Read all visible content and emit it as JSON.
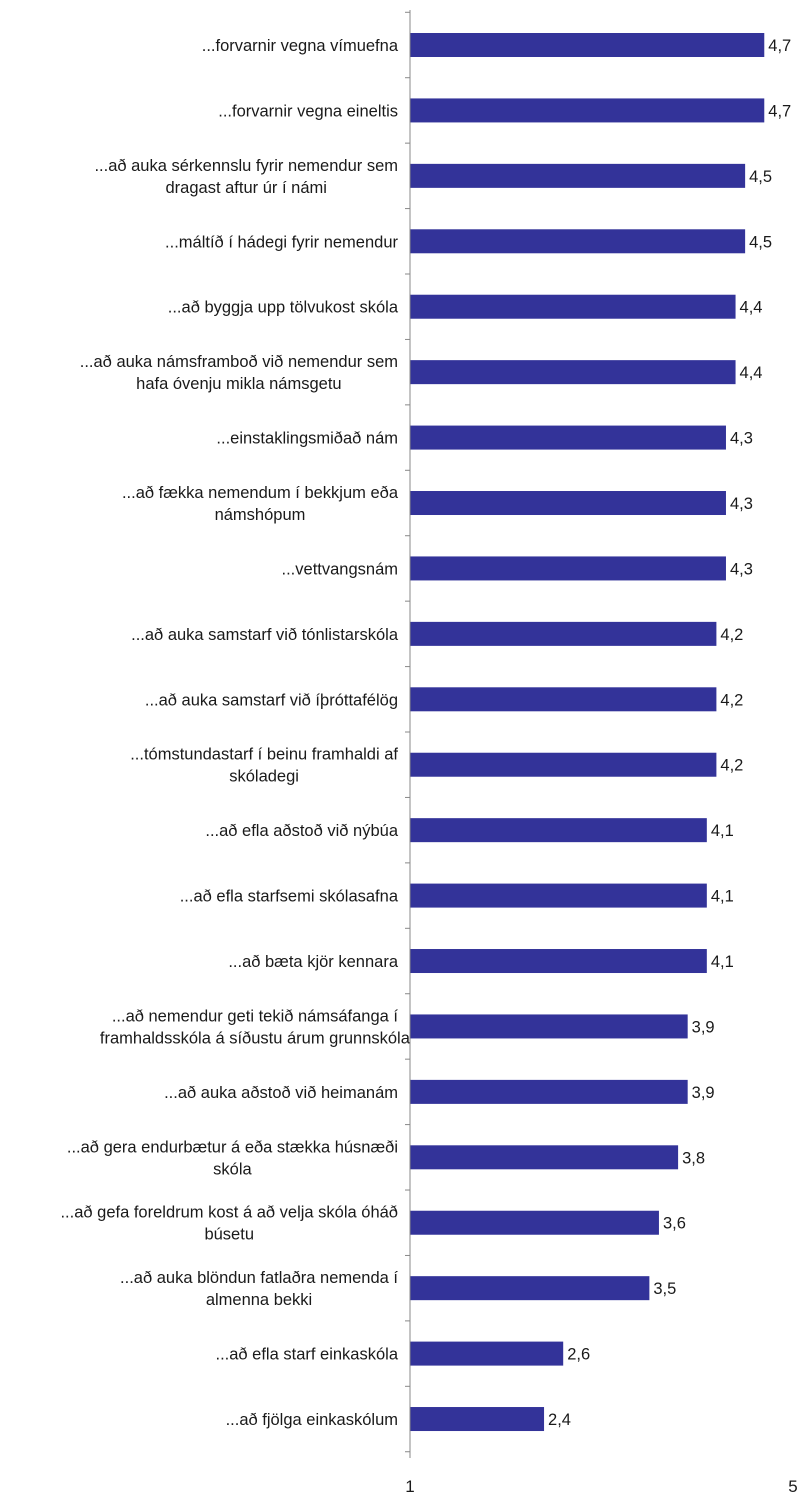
{
  "chart_data": {
    "type": "bar",
    "orientation": "horizontal",
    "title": "",
    "xlabel": "",
    "ylabel": "",
    "xlim": [
      1,
      5
    ],
    "x_ticks": [
      "1",
      "5"
    ],
    "grid": false,
    "legend": "none",
    "bar_color": "#333399",
    "categories": [
      "...forvarnir vegna vímuefna",
      "...forvarnir vegna eineltis",
      "...að auka sérkennslu fyrir nemendur sem dragast aftur úr í námi",
      "...máltíð í hádegi fyrir nemendur",
      "...að byggja upp tölvukost skóla",
      "...að auka námsframboð við nemendur sem hafa óvenju mikla námsgetu",
      "...einstaklingsmiðað nám",
      "...að fækka nemendum í bekkjum eða námshópum",
      "...vettvangsnám",
      "...að auka samstarf við tónlistarskóla",
      "...að auka samstarf við íþróttafélög",
      "...tómstundastarf í beinu framhaldi af skóladegi",
      "...að efla aðstoð við nýbúa",
      "...að efla starfsemi skólasafna",
      "...að bæta kjör kennara",
      "...að nemendur geti tekið námsáfanga í framhaldsskóla á síðustu árum grunnskóla",
      "...að auka aðstoð við heimanám",
      "...að gera endurbætur á eða stækka húsnæði skóla",
      "...að gefa foreldrum kost á að velja skóla óháð búsetu",
      "...að auka blöndun fatlaðra nemenda í almenna bekki",
      "...að efla starf einkaskóla",
      "...að fjölga einkaskólum"
    ],
    "label_lines": [
      [
        "...forvarnir vegna vímuefna"
      ],
      [
        "...forvarnir vegna eineltis"
      ],
      [
        "...að auka sérkennslu fyrir nemendur sem",
        "dragast aftur úr í námi"
      ],
      [
        "...máltíð í hádegi fyrir nemendur"
      ],
      [
        "...að byggja upp tölvukost skóla"
      ],
      [
        "...að auka námsframboð við nemendur sem",
        "hafa óvenju mikla námsgetu"
      ],
      [
        "...einstaklingsmiðað nám"
      ],
      [
        "...að fækka nemendum í bekkjum eða",
        "námshópum"
      ],
      [
        "...vettvangsnám"
      ],
      [
        "...að auka samstarf við tónlistarskóla"
      ],
      [
        "...að auka samstarf við íþróttafélög"
      ],
      [
        "...tómstundastarf í beinu framhaldi af",
        "skóladegi"
      ],
      [
        "...að efla aðstoð við nýbúa"
      ],
      [
        "...að efla starfsemi skólasafna"
      ],
      [
        "...að bæta kjör kennara"
      ],
      [
        "...að nemendur geti tekið námsáfanga í",
        "framhaldsskóla á síðustu árum grunnskóla"
      ],
      [
        "...að auka aðstoð við heimanám"
      ],
      [
        "...að gera endurbætur á eða stækka húsnæði",
        "skóla"
      ],
      [
        "...að gefa foreldrum kost á að velja skóla óháð",
        "búsetu"
      ],
      [
        "...að auka blöndun fatlaðra nemenda í",
        "almenna bekki"
      ],
      [
        "...að efla starf einkaskóla"
      ],
      [
        "...að fjölga einkaskólum"
      ]
    ],
    "values": [
      4.7,
      4.7,
      4.5,
      4.5,
      4.4,
      4.4,
      4.3,
      4.3,
      4.3,
      4.2,
      4.2,
      4.2,
      4.1,
      4.1,
      4.1,
      3.9,
      3.9,
      3.8,
      3.6,
      3.5,
      2.6,
      2.4
    ],
    "value_labels": [
      "4,7",
      "4,7",
      "4,5",
      "4,5",
      "4,4",
      "4,4",
      "4,3",
      "4,3",
      "4,3",
      "4,2",
      "4,2",
      "4,2",
      "4,1",
      "4,1",
      "4,1",
      "3,9",
      "3,9",
      "3,8",
      "3,6",
      "3,5",
      "2,6",
      "2,4"
    ]
  }
}
